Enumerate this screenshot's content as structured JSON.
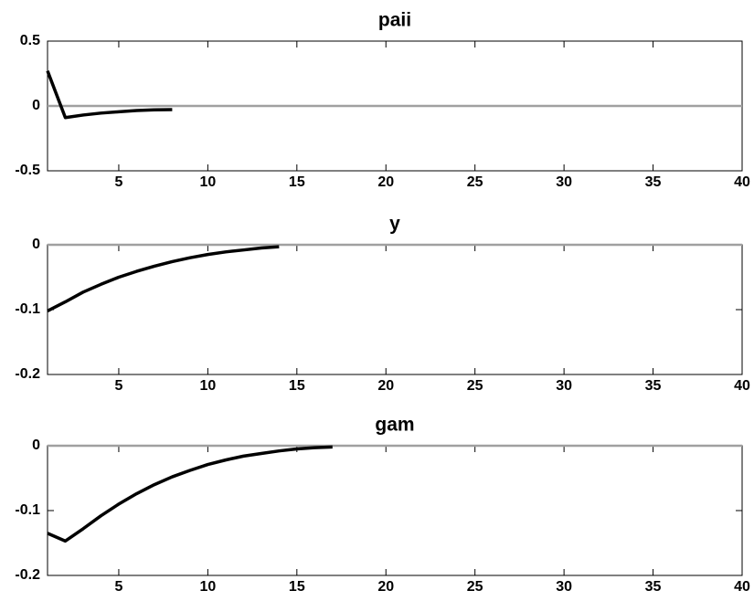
{
  "chart_data": [
    {
      "type": "line",
      "title": "paii",
      "x": [
        1,
        2,
        3,
        4,
        5,
        6,
        7,
        8
      ],
      "series": [
        {
          "color": "#000000",
          "values": [
            0.27,
            -0.09,
            -0.07,
            -0.055,
            -0.045,
            -0.035,
            -0.03,
            -0.028
          ]
        }
      ],
      "xlim": [
        1,
        40
      ],
      "xticks": [
        5,
        10,
        15,
        20,
        25,
        30,
        35,
        40
      ],
      "ylim": [
        -0.5,
        0.5
      ],
      "yticks": [
        -0.5,
        0,
        0.5
      ],
      "hline": 0,
      "hline_color": "#a0a0a0"
    },
    {
      "type": "line",
      "title": "y",
      "x": [
        1,
        2,
        3,
        4,
        5,
        6,
        7,
        8,
        9,
        10,
        11,
        12,
        13,
        14
      ],
      "series": [
        {
          "color": "#000000",
          "values": [
            -0.102,
            -0.088,
            -0.073,
            -0.061,
            -0.05,
            -0.041,
            -0.033,
            -0.026,
            -0.02,
            -0.015,
            -0.011,
            -0.008,
            -0.005,
            -0.003
          ]
        }
      ],
      "xlim": [
        1,
        40
      ],
      "xticks": [
        5,
        10,
        15,
        20,
        25,
        30,
        35,
        40
      ],
      "ylim": [
        -0.2,
        0
      ],
      "yticks": [
        -0.2,
        -0.1,
        0
      ],
      "hline": 0,
      "hline_color": "#a0a0a0"
    },
    {
      "type": "line",
      "title": "gam",
      "x": [
        1,
        2,
        3,
        4,
        5,
        6,
        7,
        8,
        9,
        10,
        11,
        12,
        13,
        14,
        15,
        16,
        17
      ],
      "series": [
        {
          "color": "#000000",
          "values": [
            -0.135,
            -0.147,
            -0.128,
            -0.108,
            -0.09,
            -0.074,
            -0.06,
            -0.048,
            -0.038,
            -0.029,
            -0.022,
            -0.016,
            -0.012,
            -0.008,
            -0.005,
            -0.003,
            -0.002
          ]
        }
      ],
      "xlim": [
        1,
        40
      ],
      "xticks": [
        5,
        10,
        15,
        20,
        25,
        30,
        35,
        40
      ],
      "ylim": [
        -0.2,
        0
      ],
      "yticks": [
        -0.2,
        -0.1,
        0
      ],
      "hline": 0,
      "hline_color": "#a0a0a0"
    }
  ]
}
